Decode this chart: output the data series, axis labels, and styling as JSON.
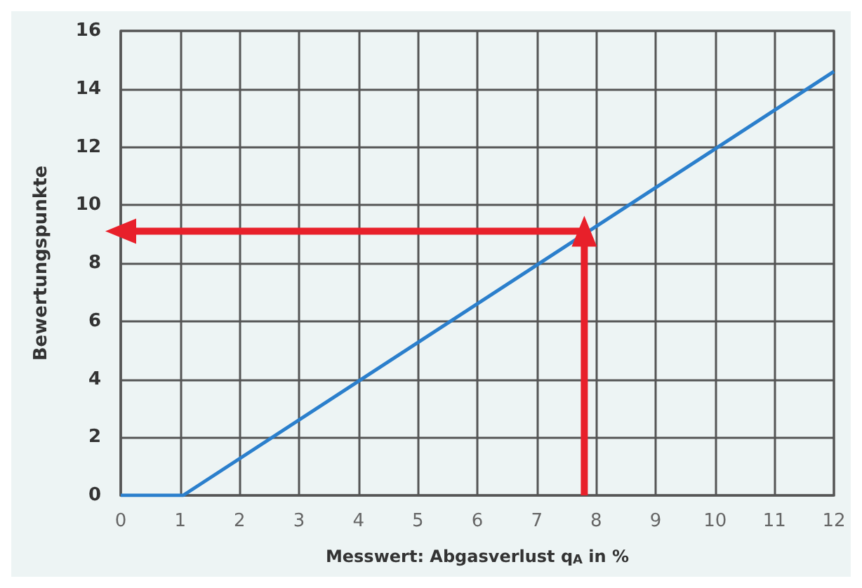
{
  "chart_data": {
    "type": "line",
    "xlabel": "Messwert: Abgasverlust q$_{A}$ in %",
    "ylabel": "Bewertungspunkte",
    "xlim": [
      0,
      12
    ],
    "xticks": [
      0,
      1,
      2,
      3,
      4,
      5,
      6,
      7,
      8,
      9,
      10,
      11,
      12
    ],
    "ylim": [
      0,
      16
    ],
    "yticks": [
      0,
      2,
      4,
      6,
      8,
      10,
      12,
      14,
      16
    ],
    "grid": true,
    "series": [
      {
        "color": "#2b7fcc",
        "x": [
          0,
          1.05,
          12
        ],
        "values": [
          0,
          0,
          14.6
        ]
      },
      {
        "color": "#e8202a",
        "x": [
          7.8,
          7.8
        ],
        "values": [
          0,
          9.1
        ],
        "marker": "triangle"
      },
      {
        "color": "#e8202a",
        "x": [
          7.8,
          0
        ],
        "values": [
          9.1,
          9.1
        ],
        "marker": "triangle"
      }
    ]
  }
}
